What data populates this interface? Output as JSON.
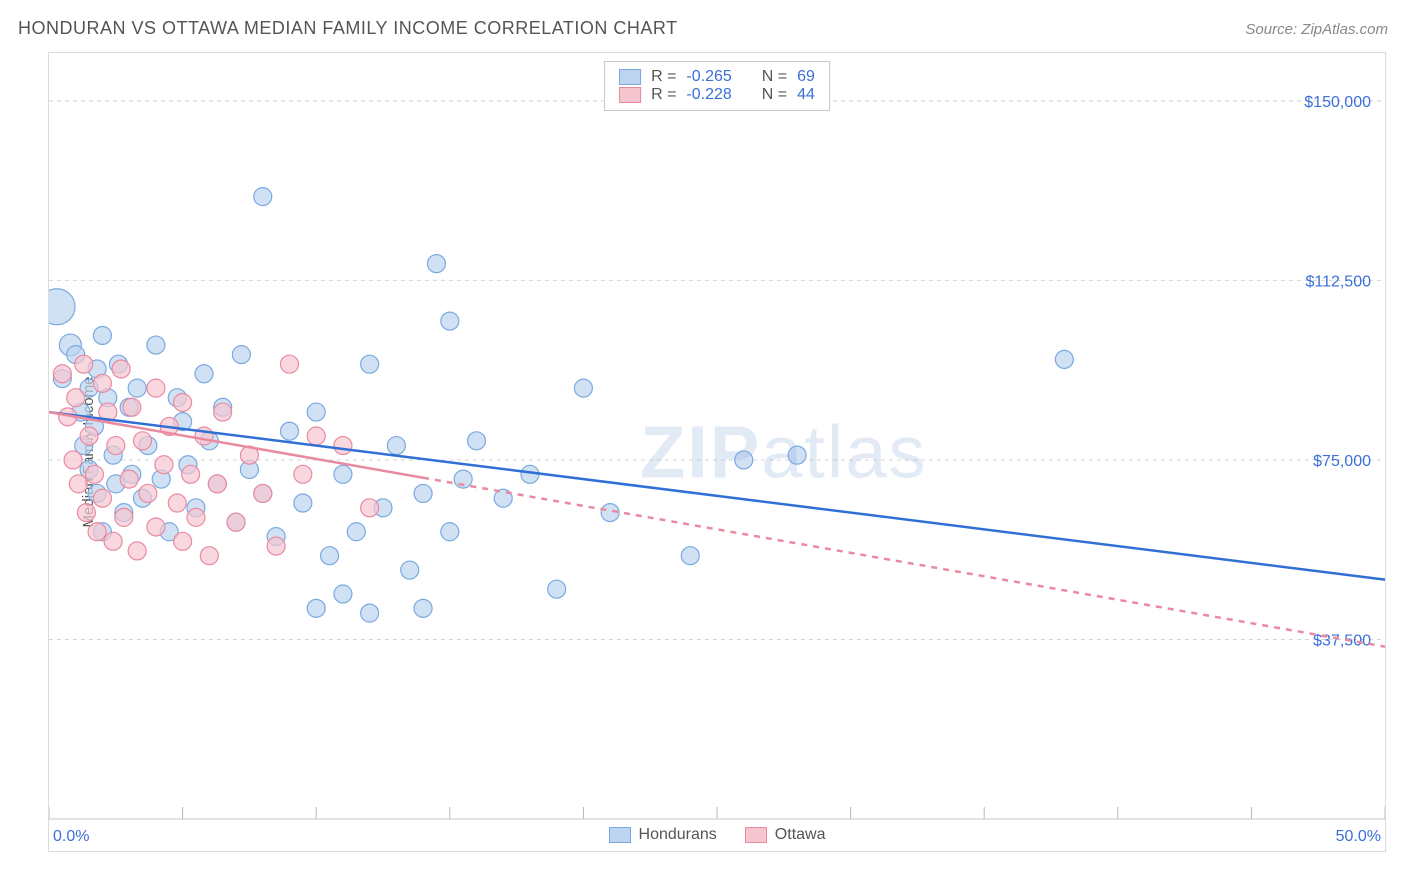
{
  "header": {
    "title": "HONDURAN VS OTTAWA MEDIAN FAMILY INCOME CORRELATION CHART",
    "source_prefix": "Source: ",
    "source_name": "ZipAtlas.com"
  },
  "chart": {
    "type": "scatter",
    "ylabel": "Median Family Income",
    "xlim": [
      0,
      50
    ],
    "ylim": [
      0,
      160000
    ],
    "yticks": [
      {
        "v": 37500,
        "label": "$37,500"
      },
      {
        "v": 75000,
        "label": "$75,000"
      },
      {
        "v": 112500,
        "label": "$112,500"
      },
      {
        "v": 150000,
        "label": "$150,000"
      }
    ],
    "xtick_labels": {
      "min": "0.0%",
      "max": "50.0%"
    },
    "x_minor_step": 5,
    "grid_color": "#d5d5d5",
    "background_color": "#ffffff",
    "axis_label_color": "#3b6fd8",
    "watermark": {
      "letters_bold": "ZIP",
      "letters_light": "atlas"
    },
    "point_radius": 9,
    "series": [
      {
        "name": "Hondurans",
        "fill": "#bcd4f0",
        "stroke": "#7aa9e0",
        "stats": {
          "R": "-0.265",
          "N": "69"
        },
        "trend": {
          "x1": 0,
          "y1": 85000,
          "x2": 50,
          "y2": 50000,
          "color": "#2f6fd6",
          "dash": ""
        },
        "points": [
          [
            0.3,
            107000,
            18
          ],
          [
            0.8,
            99000,
            11
          ],
          [
            1.0,
            97000,
            9
          ],
          [
            1.2,
            85000,
            9
          ],
          [
            1.3,
            78000,
            9
          ],
          [
            1.5,
            90000,
            9
          ],
          [
            1.5,
            73000,
            9
          ],
          [
            1.7,
            82000,
            9
          ],
          [
            1.8,
            68000,
            9
          ],
          [
            1.8,
            94000,
            9
          ],
          [
            2.0,
            101000,
            9
          ],
          [
            2.0,
            60000,
            9
          ],
          [
            2.2,
            88000,
            9
          ],
          [
            2.4,
            76000,
            9
          ],
          [
            2.5,
            70000,
            9
          ],
          [
            2.6,
            95000,
            9
          ],
          [
            2.8,
            64000,
            9
          ],
          [
            3.0,
            86000,
            9
          ],
          [
            3.1,
            72000,
            9
          ],
          [
            3.3,
            90000,
            9
          ],
          [
            3.5,
            67000,
            9
          ],
          [
            3.7,
            78000,
            9
          ],
          [
            4.0,
            99000,
            9
          ],
          [
            4.2,
            71000,
            9
          ],
          [
            4.5,
            60000,
            9
          ],
          [
            4.8,
            88000,
            9
          ],
          [
            5.0,
            83000,
            9
          ],
          [
            5.2,
            74000,
            9
          ],
          [
            5.5,
            65000,
            9
          ],
          [
            5.8,
            93000,
            9
          ],
          [
            6.0,
            79000,
            9
          ],
          [
            6.3,
            70000,
            9
          ],
          [
            6.5,
            86000,
            9
          ],
          [
            7.0,
            62000,
            9
          ],
          [
            7.2,
            97000,
            9
          ],
          [
            7.5,
            73000,
            9
          ],
          [
            8.0,
            130000,
            9
          ],
          [
            8.0,
            68000,
            9
          ],
          [
            8.5,
            59000,
            9
          ],
          [
            9.0,
            81000,
            9
          ],
          [
            9.5,
            66000,
            9
          ],
          [
            10.0,
            44000,
            9
          ],
          [
            10.0,
            85000,
            9
          ],
          [
            10.5,
            55000,
            9
          ],
          [
            11.0,
            72000,
            9
          ],
          [
            11.0,
            47000,
            9
          ],
          [
            11.5,
            60000,
            9
          ],
          [
            12.0,
            95000,
            9
          ],
          [
            12.0,
            43000,
            9
          ],
          [
            12.5,
            65000,
            9
          ],
          [
            13.0,
            78000,
            9
          ],
          [
            13.5,
            52000,
            9
          ],
          [
            14.0,
            68000,
            9
          ],
          [
            14.0,
            44000,
            9
          ],
          [
            14.5,
            116000,
            9
          ],
          [
            15.0,
            60000,
            9
          ],
          [
            15.0,
            104000,
            9
          ],
          [
            15.5,
            71000,
            9
          ],
          [
            16.0,
            79000,
            9
          ],
          [
            17.0,
            67000,
            9
          ],
          [
            18.0,
            72000,
            9
          ],
          [
            19.0,
            48000,
            9
          ],
          [
            20.0,
            90000,
            9
          ],
          [
            21.0,
            64000,
            9
          ],
          [
            24.0,
            55000,
            9
          ],
          [
            26.0,
            75000,
            9
          ],
          [
            28.0,
            76000,
            9
          ],
          [
            38.0,
            96000,
            9
          ],
          [
            0.5,
            92000,
            9
          ]
        ]
      },
      {
        "name": "Ottawa",
        "fill": "#f6c6d0",
        "stroke": "#e98aa0",
        "stats": {
          "R": "-0.228",
          "N": "44"
        },
        "trend": {
          "x1": 0,
          "y1": 85000,
          "x2": 50,
          "y2": 36000,
          "color": "#e98aa0",
          "dash": "6 6"
        },
        "trend_solid_until_x": 14,
        "points": [
          [
            0.5,
            93000,
            9
          ],
          [
            0.7,
            84000,
            9
          ],
          [
            0.9,
            75000,
            9
          ],
          [
            1.0,
            88000,
            9
          ],
          [
            1.1,
            70000,
            9
          ],
          [
            1.3,
            95000,
            9
          ],
          [
            1.4,
            64000,
            9
          ],
          [
            1.5,
            80000,
            9
          ],
          [
            1.7,
            72000,
            9
          ],
          [
            1.8,
            60000,
            9
          ],
          [
            2.0,
            91000,
            9
          ],
          [
            2.0,
            67000,
            9
          ],
          [
            2.2,
            85000,
            9
          ],
          [
            2.4,
            58000,
            9
          ],
          [
            2.5,
            78000,
            9
          ],
          [
            2.7,
            94000,
            9
          ],
          [
            2.8,
            63000,
            9
          ],
          [
            3.0,
            71000,
            9
          ],
          [
            3.1,
            86000,
            9
          ],
          [
            3.3,
            56000,
            9
          ],
          [
            3.5,
            79000,
            9
          ],
          [
            3.7,
            68000,
            9
          ],
          [
            4.0,
            90000,
            9
          ],
          [
            4.0,
            61000,
            9
          ],
          [
            4.3,
            74000,
            9
          ],
          [
            4.5,
            82000,
            9
          ],
          [
            4.8,
            66000,
            9
          ],
          [
            5.0,
            87000,
            9
          ],
          [
            5.0,
            58000,
            9
          ],
          [
            5.3,
            72000,
            9
          ],
          [
            5.5,
            63000,
            9
          ],
          [
            5.8,
            80000,
            9
          ],
          [
            6.0,
            55000,
            9
          ],
          [
            6.3,
            70000,
            9
          ],
          [
            6.5,
            85000,
            9
          ],
          [
            7.0,
            62000,
            9
          ],
          [
            7.5,
            76000,
            9
          ],
          [
            8.0,
            68000,
            9
          ],
          [
            8.5,
            57000,
            9
          ],
          [
            9.0,
            95000,
            9
          ],
          [
            9.5,
            72000,
            9
          ],
          [
            10.0,
            80000,
            9
          ],
          [
            11.0,
            78000,
            9
          ],
          [
            12.0,
            65000,
            9
          ]
        ]
      }
    ],
    "legend_bottom": [
      {
        "label": "Hondurans",
        "fill": "#bcd4f0",
        "stroke": "#7aa9e0"
      },
      {
        "label": "Ottawa",
        "fill": "#f6c6d0",
        "stroke": "#e98aa0"
      }
    ]
  }
}
